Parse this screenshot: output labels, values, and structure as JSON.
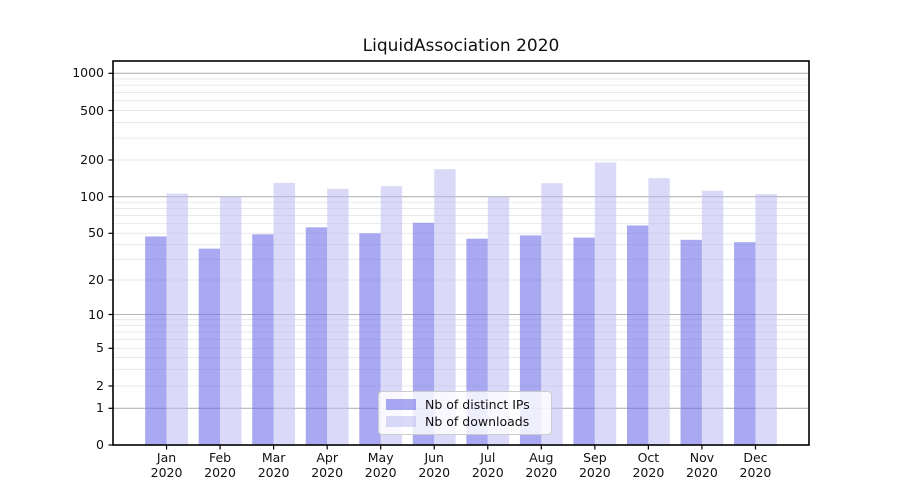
{
  "title": "LiquidAssociation 2020",
  "chart_data": {
    "type": "bar",
    "title": "LiquidAssociation 2020",
    "categories": [
      "Jan",
      "Feb",
      "Mar",
      "Apr",
      "May",
      "Jun",
      "Jul",
      "Aug",
      "Sep",
      "Oct",
      "Nov",
      "Dec"
    ],
    "category_subline": "2020",
    "series": [
      {
        "name": "Nb of distinct IPs",
        "color": "rgba(112,112,234,0.6)",
        "values": [
          47,
          37,
          49,
          56,
          50,
          61,
          45,
          48,
          46,
          58,
          44,
          42
        ]
      },
      {
        "name": "Nb of downloads",
        "color": "rgba(188,188,242,0.55)",
        "values": [
          106,
          100,
          130,
          116,
          122,
          168,
          100,
          129,
          191,
          142,
          112,
          105
        ]
      }
    ],
    "xlabel": "",
    "ylabel": "",
    "y_scale": "symlog",
    "y_ticks": [
      0,
      1,
      2,
      5,
      10,
      20,
      50,
      100,
      200,
      500,
      1000
    ],
    "ylim": [
      0,
      1260
    ],
    "grid": true,
    "legend_position": "lower center",
    "colors": {
      "major_gridline": "#b5b5b5",
      "minor_gridline": "#e9e9e9",
      "axis_frame": "#000000",
      "text": "#111111",
      "background": "#ffffff"
    }
  }
}
